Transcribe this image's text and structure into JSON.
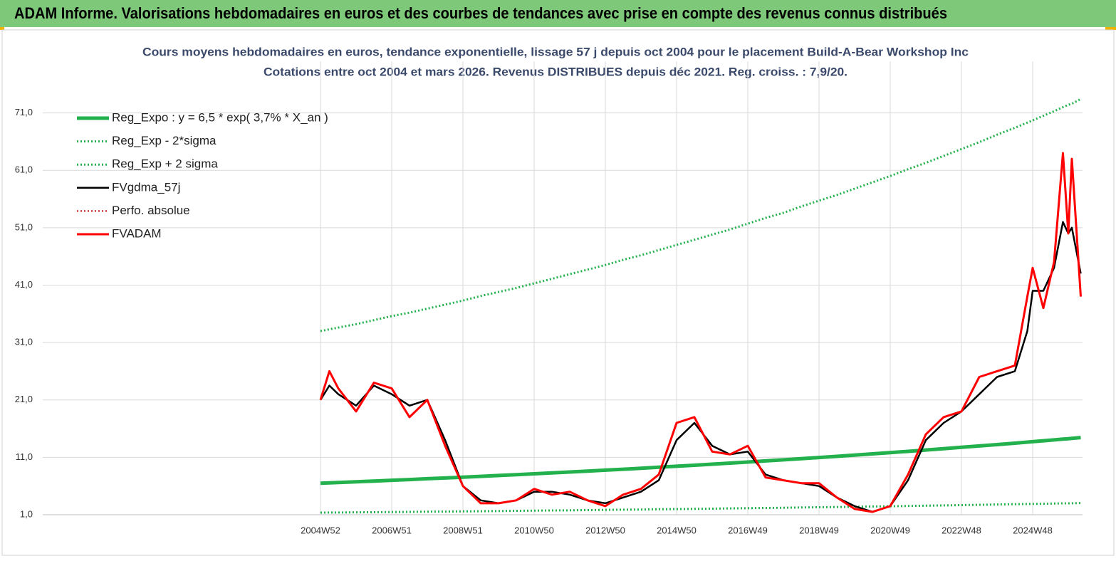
{
  "header": {
    "title": "ADAM Informe. Valorisations hebdomadaires en euros et des courbes de tendances avec prise en compte des revenus connus distribués"
  },
  "chart_data": {
    "type": "line",
    "title": "Cours moyens hebdomadaires en euros, tendance exponentielle, lissage 57 j depuis oct 2004  pour le placement Build-A-Bear Workshop Inc",
    "subtitle": "Cotations entre oct 2004 et mars 2026. Revenus DISTRIBUES depuis déc 2021. Reg. croiss. : 7,9/20.",
    "x": [
      2005.0,
      2005.25,
      2005.5,
      2006.0,
      2006.5,
      2007.0,
      2007.5,
      2008.0,
      2008.5,
      2009.0,
      2009.5,
      2010.0,
      2010.5,
      2011.0,
      2011.5,
      2012.0,
      2012.5,
      2013.0,
      2013.5,
      2014.0,
      2014.5,
      2015.0,
      2015.5,
      2016.0,
      2016.5,
      2017.0,
      2017.5,
      2018.0,
      2018.5,
      2019.0,
      2019.5,
      2020.0,
      2020.5,
      2021.0,
      2021.5,
      2022.0,
      2022.5,
      2023.0,
      2023.5,
      2024.0,
      2024.5,
      2024.85,
      2025.0,
      2025.3,
      2025.6,
      2025.85,
      2026.0,
      2026.1,
      2026.35
    ],
    "series": [
      {
        "name": "Reg_Expo : y = 6,5 * exp( 3,7% *  X_an )",
        "color": "#22b14c",
        "style": "solid",
        "width": 5,
        "values": [
          6.5,
          6.56,
          6.62,
          6.74,
          6.87,
          7.0,
          7.13,
          7.27,
          7.4,
          7.54,
          7.69,
          7.83,
          7.98,
          8.13,
          8.28,
          8.44,
          8.6,
          8.76,
          8.93,
          9.09,
          9.27,
          9.44,
          9.62,
          9.8,
          9.99,
          10.18,
          10.37,
          10.56,
          10.76,
          10.97,
          11.17,
          11.38,
          11.6,
          11.82,
          12.04,
          12.27,
          12.5,
          12.74,
          12.98,
          13.22,
          13.47,
          13.65,
          13.73,
          13.88,
          14.04,
          14.17,
          14.25,
          14.3,
          14.44
        ]
      },
      {
        "name": "Reg_Exp - 2*sigma",
        "color": "#22b14c",
        "style": "dotted",
        "width": 3,
        "values": [
          1.37,
          1.38,
          1.39,
          1.42,
          1.44,
          1.47,
          1.5,
          1.53,
          1.55,
          1.58,
          1.61,
          1.64,
          1.68,
          1.71,
          1.74,
          1.77,
          1.81,
          1.84,
          1.88,
          1.91,
          1.95,
          1.98,
          2.02,
          2.06,
          2.1,
          2.14,
          2.18,
          2.22,
          2.26,
          2.3,
          2.34,
          2.39,
          2.44,
          2.48,
          2.53,
          2.58,
          2.63,
          2.68,
          2.73,
          2.78,
          2.83,
          2.87,
          2.88,
          2.91,
          2.95,
          2.98,
          2.99,
          3.0,
          3.03
        ]
      },
      {
        "name": "Reg_Exp + 2 sigma",
        "color": "#22b14c",
        "style": "dotted",
        "width": 3,
        "values": [
          33.0,
          33.3,
          33.6,
          34.2,
          34.9,
          35.6,
          36.2,
          36.9,
          37.6,
          38.3,
          39.1,
          39.8,
          40.5,
          41.3,
          42.1,
          42.9,
          43.7,
          44.5,
          45.4,
          46.2,
          47.1,
          48.0,
          48.9,
          49.8,
          50.7,
          51.7,
          52.7,
          53.6,
          54.7,
          55.7,
          56.7,
          57.8,
          58.9,
          60.0,
          61.2,
          62.3,
          63.5,
          64.7,
          65.9,
          67.2,
          68.4,
          69.3,
          69.7,
          70.5,
          71.3,
          72.0,
          72.4,
          72.6,
          73.4
        ]
      },
      {
        "name": "FVgdma_57j",
        "color": "#000000",
        "style": "solid",
        "width": 2.5,
        "values": [
          21,
          23.5,
          22,
          20,
          23.5,
          22,
          20,
          21,
          14,
          6,
          3.5,
          3,
          3.5,
          5,
          5,
          4.5,
          3.5,
          3,
          4,
          5,
          7,
          14,
          17,
          13,
          11.5,
          12,
          8,
          7,
          6.5,
          6,
          4,
          2.5,
          1.5,
          2.5,
          7,
          14,
          17,
          19,
          22,
          25,
          26,
          33,
          40,
          40,
          44,
          52,
          50,
          51,
          43
        ]
      },
      {
        "name": "Perfo. absolue",
        "color": "#c00000",
        "style": "dotted",
        "width": 2,
        "values": [
          null,
          null,
          null,
          null,
          null,
          null,
          null,
          null,
          null,
          null,
          null,
          null,
          null,
          null,
          null,
          null,
          null,
          null,
          null,
          null,
          null,
          null,
          null,
          null,
          null,
          null,
          null,
          null,
          null,
          null,
          null,
          null,
          null,
          null,
          null,
          null,
          null,
          null,
          null,
          null,
          null,
          null,
          null,
          null,
          null,
          null,
          null,
          null,
          null
        ]
      },
      {
        "name": "FVADAM",
        "color": "#ff0000",
        "style": "solid",
        "width": 3,
        "values": [
          21,
          26,
          23,
          19,
          24,
          23,
          18,
          21,
          13,
          6,
          3,
          3,
          3.5,
          5.5,
          4.5,
          5,
          3.5,
          2.5,
          4.5,
          5.5,
          8,
          17,
          18,
          12,
          11.5,
          13,
          7.5,
          7,
          6.5,
          6.5,
          4,
          2,
          1.5,
          2.5,
          8,
          15,
          18,
          19,
          25,
          26,
          27,
          39,
          44,
          37,
          45,
          64,
          50,
          63,
          39
        ]
      }
    ],
    "xlim": [
      1997.2,
      2026.4
    ],
    "xticks": [
      {
        "value": 2005.0,
        "label": "2004W52"
      },
      {
        "value": 2007.0,
        "label": "2006W51"
      },
      {
        "value": 2009.0,
        "label": "2008W51"
      },
      {
        "value": 2011.0,
        "label": "2010W50"
      },
      {
        "value": 2013.0,
        "label": "2012W50"
      },
      {
        "value": 2015.0,
        "label": "2014W50"
      },
      {
        "value": 2017.0,
        "label": "2016W49"
      },
      {
        "value": 2019.0,
        "label": "2018W49"
      },
      {
        "value": 2021.0,
        "label": "2020W49"
      },
      {
        "value": 2023.0,
        "label": "2022W48"
      },
      {
        "value": 2025.0,
        "label": "2024W48"
      }
    ],
    "ylim": [
      1,
      80
    ],
    "yticks": [
      {
        "value": 1,
        "label": "1,0"
      },
      {
        "value": 11,
        "label": "11,0"
      },
      {
        "value": 21,
        "label": "21,0"
      },
      {
        "value": 31,
        "label": "31,0"
      },
      {
        "value": 41,
        "label": "41,0"
      },
      {
        "value": 51,
        "label": "51,0"
      },
      {
        "value": 61,
        "label": "61,0"
      },
      {
        "value": 71,
        "label": "71,0"
      }
    ],
    "grid": true,
    "legend": "upper left"
  }
}
